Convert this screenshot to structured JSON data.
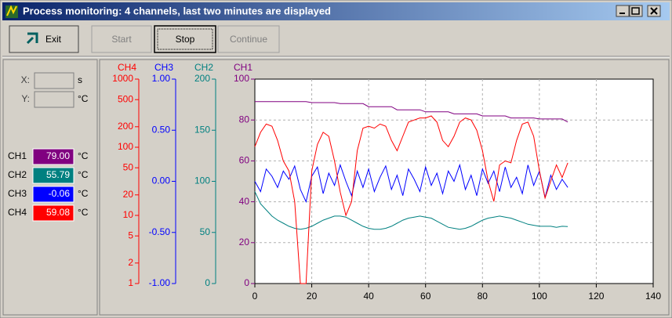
{
  "window": {
    "title": "Process monitoring: 4 channels, last two minutes are displayed"
  },
  "toolbar": {
    "buttons": [
      "Exit",
      "Start",
      "Stop",
      "Continue"
    ]
  },
  "panel": {
    "cursor": [
      {
        "label": "X:",
        "unit": "s"
      },
      {
        "label": "Y:",
        "unit": "°C"
      }
    ],
    "channels": [
      {
        "label": "CH1",
        "value": "79.00",
        "unit": "°C"
      },
      {
        "label": "CH2",
        "value": "55.79",
        "unit": "°C"
      },
      {
        "label": "CH3",
        "value": "-0.06",
        "unit": "°C"
      },
      {
        "label": "CH4",
        "value": "59.08",
        "unit": "°C"
      }
    ]
  },
  "chart_data": {
    "type": "line",
    "x": [
      0,
      2,
      4,
      6,
      8,
      10,
      12,
      14,
      16,
      18,
      20,
      22,
      24,
      26,
      28,
      30,
      32,
      34,
      36,
      38,
      40,
      42,
      44,
      46,
      48,
      50,
      52,
      54,
      56,
      58,
      60,
      62,
      64,
      66,
      68,
      70,
      72,
      74,
      76,
      78,
      80,
      82,
      84,
      86,
      88,
      90,
      92,
      94,
      96,
      98,
      100,
      102,
      104,
      106,
      108,
      110
    ],
    "xlim": [
      0,
      140
    ],
    "xticks": [
      0,
      20,
      40,
      60,
      80,
      100,
      120,
      140
    ],
    "grid": true,
    "series": [
      {
        "name": "CH1",
        "color": "#800080",
        "ylim": [
          0,
          100
        ],
        "yticks": [
          0,
          20,
          40,
          60,
          80,
          100
        ],
        "values": [
          89,
          89,
          89,
          89,
          89,
          89,
          89,
          89,
          89,
          89,
          88.5,
          88.5,
          88.5,
          88.5,
          88.5,
          88,
          88,
          88,
          88,
          88,
          86.5,
          86.5,
          86.5,
          86.5,
          86.5,
          85,
          85,
          85,
          85,
          85,
          84,
          84,
          84,
          84,
          84,
          83,
          83,
          83,
          83,
          83,
          82,
          82,
          82,
          82,
          82,
          81,
          81,
          81,
          81,
          81,
          80.5,
          80.5,
          80.5,
          80.5,
          80.5,
          79
        ]
      },
      {
        "name": "CH2",
        "color": "#008080",
        "ylim": [
          0,
          200
        ],
        "yticks": [
          0,
          50,
          100,
          150,
          200
        ],
        "values": [
          90,
          78,
          72,
          66,
          62,
          59,
          56,
          54,
          53,
          54,
          56,
          59,
          62,
          64,
          66,
          66,
          65,
          62,
          59,
          56,
          54,
          53,
          53,
          54,
          56,
          59,
          62,
          64,
          65,
          66,
          65,
          64,
          61,
          58,
          55,
          54,
          53,
          54,
          56,
          59,
          62,
          64,
          65,
          66,
          65,
          64,
          62,
          60,
          58,
          57,
          56,
          56,
          56,
          55,
          56,
          55.79
        ]
      },
      {
        "name": "CH3",
        "color": "#0000ff",
        "ylim": [
          -1,
          1
        ],
        "yticks": [
          {
            "value": -1,
            "label": "-1.00"
          },
          {
            "value": -0.5,
            "label": "-0.50"
          },
          {
            "value": 0,
            "label": "0.00"
          },
          {
            "value": 0.5,
            "label": "0.50"
          },
          {
            "value": 1,
            "label": "1.00"
          }
        ],
        "values": [
          0.0,
          -0.1,
          0.12,
          0.05,
          -0.06,
          0.1,
          0.02,
          0.15,
          -0.08,
          -0.2,
          0.05,
          0.14,
          -0.12,
          0.08,
          -0.04,
          0.16,
          0.0,
          -0.14,
          0.1,
          -0.06,
          0.12,
          -0.1,
          0.04,
          0.15,
          -0.08,
          0.06,
          -0.14,
          0.12,
          0.02,
          -0.1,
          0.14,
          -0.04,
          0.08,
          -0.12,
          0.1,
          0.0,
          0.16,
          -0.08,
          0.06,
          -0.14,
          0.12,
          -0.02,
          0.1,
          -0.1,
          0.14,
          -0.06,
          0.04,
          -0.12,
          0.16,
          -0.04,
          0.1,
          -0.16,
          0.06,
          -0.08,
          0.02,
          -0.06
        ]
      },
      {
        "name": "CH4",
        "color": "#ff0000",
        "log_scale": true,
        "ylim": [
          1,
          1000
        ],
        "yticks": [
          1,
          2,
          5,
          10,
          20,
          50,
          100,
          200,
          500,
          1000
        ],
        "values": [
          102,
          166,
          219,
          204,
          126,
          63,
          45,
          16,
          1,
          1,
          45,
          110,
          166,
          145,
          63,
          22,
          10,
          16,
          89,
          191,
          204,
          191,
          219,
          204,
          126,
          89,
          145,
          234,
          251,
          269,
          269,
          288,
          234,
          126,
          102,
          145,
          234,
          269,
          251,
          178,
          89,
          32,
          16,
          55,
          63,
          59,
          126,
          219,
          234,
          145,
          45,
          18,
          32,
          55,
          36,
          59.08
        ]
      }
    ]
  }
}
